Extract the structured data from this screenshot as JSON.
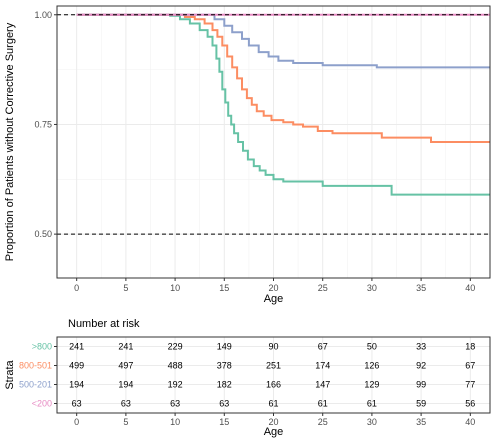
{
  "chart_data": {
    "type": "line",
    "subtype": "kaplan-meier",
    "xlabel": "Age",
    "ylabel": "Proportion of Patients without Corrective Surgery",
    "xlim": [
      -2,
      42
    ],
    "ylim": [
      0.4,
      1.02
    ],
    "x_ticks": [
      0,
      5,
      10,
      15,
      20,
      25,
      30,
      35,
      40
    ],
    "y_ticks": [
      0.5,
      0.75,
      1.0
    ],
    "y_tick_labels": [
      "0.50",
      "0.75",
      "1.00"
    ],
    "reference_lines": [
      1.0,
      0.5
    ],
    "grid": true,
    "series": [
      {
        "name": ">800",
        "color": "#66c2a5",
        "points": [
          [
            0,
            1
          ],
          [
            7,
            1
          ],
          [
            9.5,
            0.998
          ],
          [
            10.5,
            0.99
          ],
          [
            11.5,
            0.98
          ],
          [
            12.5,
            0.965
          ],
          [
            13.3,
            0.95
          ],
          [
            13.8,
            0.93
          ],
          [
            14.2,
            0.9
          ],
          [
            14.5,
            0.87
          ],
          [
            14.8,
            0.83
          ],
          [
            15.1,
            0.8
          ],
          [
            15.4,
            0.77
          ],
          [
            15.7,
            0.75
          ],
          [
            16,
            0.73
          ],
          [
            16.4,
            0.71
          ],
          [
            16.9,
            0.69
          ],
          [
            17.4,
            0.67
          ],
          [
            18,
            0.655
          ],
          [
            18.6,
            0.645
          ],
          [
            19.2,
            0.635
          ],
          [
            20,
            0.625
          ],
          [
            21,
            0.62
          ],
          [
            24,
            0.62
          ],
          [
            25,
            0.61
          ],
          [
            30,
            0.61
          ],
          [
            32,
            0.59
          ],
          [
            42,
            0.59
          ]
        ]
      },
      {
        "name": "800-501",
        "color": "#fc8d62",
        "points": [
          [
            0,
            1
          ],
          [
            9.5,
            1
          ],
          [
            11,
            0.995
          ],
          [
            12,
            0.99
          ],
          [
            13,
            0.98
          ],
          [
            13.8,
            0.965
          ],
          [
            14.3,
            0.95
          ],
          [
            14.8,
            0.93
          ],
          [
            15.3,
            0.905
          ],
          [
            15.8,
            0.88
          ],
          [
            16.3,
            0.855
          ],
          [
            16.8,
            0.83
          ],
          [
            17.3,
            0.81
          ],
          [
            17.8,
            0.795
          ],
          [
            18.3,
            0.78
          ],
          [
            19,
            0.77
          ],
          [
            19.8,
            0.76
          ],
          [
            21,
            0.755
          ],
          [
            22,
            0.75
          ],
          [
            23,
            0.745
          ],
          [
            24.5,
            0.735
          ],
          [
            26,
            0.73
          ],
          [
            30,
            0.73
          ],
          [
            31,
            0.72
          ],
          [
            35,
            0.72
          ],
          [
            36,
            0.71
          ],
          [
            42,
            0.71
          ]
        ]
      },
      {
        "name": "500-201",
        "color": "#8da0cb",
        "points": [
          [
            0,
            1
          ],
          [
            13,
            1
          ],
          [
            14,
            0.99
          ],
          [
            15,
            0.975
          ],
          [
            15.8,
            0.96
          ],
          [
            16.8,
            0.945
          ],
          [
            17.5,
            0.93
          ],
          [
            18.5,
            0.915
          ],
          [
            19.5,
            0.905
          ],
          [
            20.5,
            0.895
          ],
          [
            22,
            0.89
          ],
          [
            25,
            0.885
          ],
          [
            30,
            0.885
          ],
          [
            30.5,
            0.88
          ],
          [
            42,
            0.88
          ]
        ]
      },
      {
        "name": "<200",
        "color": "#e78ac3",
        "points": [
          [
            0,
            1
          ],
          [
            42,
            1
          ]
        ]
      }
    ],
    "risk_table": {
      "title": "Number at risk",
      "y_axis_label": "Strata",
      "x_axis_label": "Age",
      "times": [
        0,
        5,
        10,
        15,
        20,
        25,
        30,
        35,
        40
      ],
      "rows": [
        {
          "name": ">800",
          "color": "#66c2a5",
          "values": [
            241,
            241,
            229,
            149,
            90,
            67,
            50,
            33,
            18
          ]
        },
        {
          "name": "800-501",
          "color": "#fc8d62",
          "values": [
            499,
            497,
            488,
            378,
            251,
            174,
            126,
            92,
            67
          ]
        },
        {
          "name": "500-201",
          "color": "#8da0cb",
          "values": [
            194,
            194,
            192,
            182,
            166,
            147,
            129,
            99,
            77
          ]
        },
        {
          "name": "<200",
          "color": "#e78ac3",
          "values": [
            63,
            63,
            63,
            63,
            61,
            61,
            61,
            59,
            56
          ]
        }
      ]
    }
  }
}
